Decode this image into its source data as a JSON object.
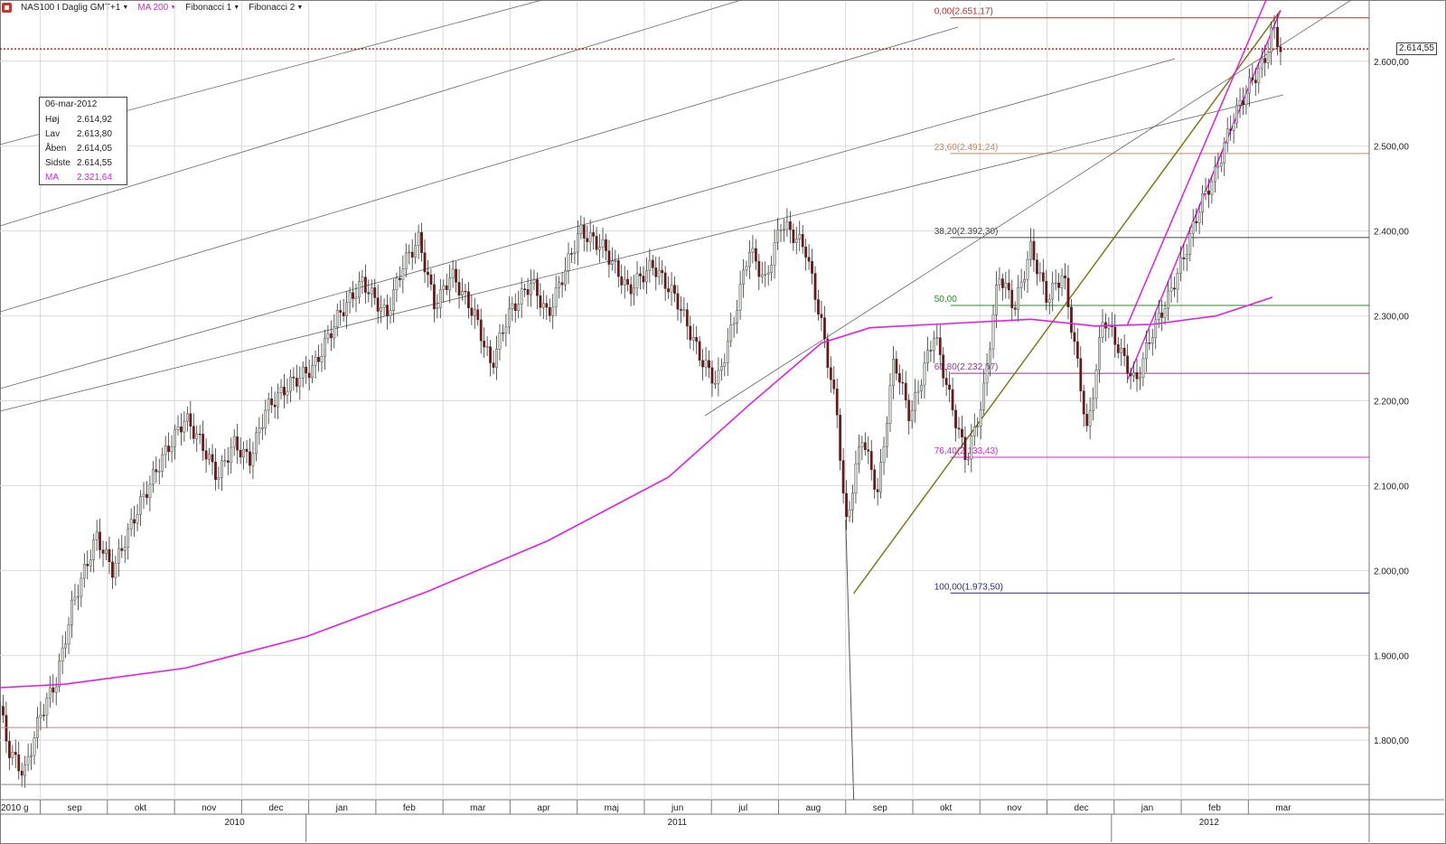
{
  "toolbar": {
    "instrument": "NAS100 I Daglig GMT+1",
    "ma_label": "MA 200",
    "fib1_label": "Fibonacci 1",
    "fib2_label": "Fibonacci 2",
    "ma_color": "#e020e0"
  },
  "info_box": {
    "date": "06-mar-2012",
    "rows": [
      {
        "k": "Høj",
        "v": "2.614,92"
      },
      {
        "k": "Lav",
        "v": "2.613,80"
      },
      {
        "k": "Åben",
        "v": "2.614,05"
      },
      {
        "k": "Sidste",
        "v": "2.614,55"
      },
      {
        "k": "MA",
        "v": "2.321,64"
      }
    ]
  },
  "last_price_label": "2.614,55",
  "chart_data": {
    "type": "candlestick",
    "ylim": [
      1730,
      2670
    ],
    "y_ticks": [
      {
        "v": 1800,
        "label": "1.800,00"
      },
      {
        "v": 1900,
        "label": "1.900,00"
      },
      {
        "v": 2000,
        "label": "2.000,00"
      },
      {
        "v": 2100,
        "label": "2.100,00"
      },
      {
        "v": 2200,
        "label": "2.200,00"
      },
      {
        "v": 2300,
        "label": "2.300,00"
      },
      {
        "v": 2400,
        "label": "2.400,00"
      },
      {
        "v": 2500,
        "label": "2.500,00"
      },
      {
        "v": 2600,
        "label": "2.600,00"
      }
    ],
    "month_ticks": [
      "sep",
      "okt",
      "nov",
      "dec",
      "jan",
      "feb",
      "mar",
      "apr",
      "maj",
      "jun",
      "jul",
      "aug",
      "sep",
      "okt",
      "nov",
      "dec",
      "jan",
      "feb",
      "mar"
    ],
    "first_tick_label": "2010 g",
    "year_labels": [
      "2010",
      "2011",
      "2012"
    ],
    "last_price": 2614.55,
    "ma200": [
      [
        2010.62,
        1862
      ],
      [
        2010.7,
        1866
      ],
      [
        2010.85,
        1885
      ],
      [
        2011.0,
        1922
      ],
      [
        2011.15,
        1975
      ],
      [
        2011.3,
        2035
      ],
      [
        2011.45,
        2110
      ],
      [
        2011.55,
        2195
      ],
      [
        2011.64,
        2268
      ],
      [
        2011.7,
        2286
      ],
      [
        2011.8,
        2291
      ],
      [
        2011.9,
        2296
      ],
      [
        2011.98,
        2288
      ],
      [
        2012.05,
        2290
      ],
      [
        2012.13,
        2300
      ],
      [
        2012.2,
        2322
      ]
    ],
    "close_path": [
      [
        2010.62,
        1840
      ],
      [
        2010.63,
        1790
      ],
      [
        2010.65,
        1760
      ],
      [
        2010.67,
        1830
      ],
      [
        2010.69,
        1870
      ],
      [
        2010.71,
        1960
      ],
      [
        2010.74,
        2040
      ],
      [
        2010.76,
        2000
      ],
      [
        2010.79,
        2070
      ],
      [
        2010.82,
        2130
      ],
      [
        2010.85,
        2180
      ],
      [
        2010.87,
        2150
      ],
      [
        2010.89,
        2110
      ],
      [
        2010.91,
        2150
      ],
      [
        2010.93,
        2130
      ],
      [
        2010.95,
        2190
      ],
      [
        2010.98,
        2220
      ],
      [
        2011.01,
        2240
      ],
      [
        2011.04,
        2300
      ],
      [
        2011.07,
        2340
      ],
      [
        2011.1,
        2300
      ],
      [
        2011.12,
        2360
      ],
      [
        2011.14,
        2390
      ],
      [
        2011.16,
        2310
      ],
      [
        2011.18,
        2350
      ],
      [
        2011.21,
        2300
      ],
      [
        2011.23,
        2240
      ],
      [
        2011.25,
        2300
      ],
      [
        2011.28,
        2340
      ],
      [
        2011.3,
        2300
      ],
      [
        2011.32,
        2350
      ],
      [
        2011.34,
        2400
      ],
      [
        2011.37,
        2380
      ],
      [
        2011.4,
        2330
      ],
      [
        2011.43,
        2360
      ],
      [
        2011.46,
        2320
      ],
      [
        2011.49,
        2250
      ],
      [
        2011.51,
        2220
      ],
      [
        2011.53,
        2290
      ],
      [
        2011.55,
        2380
      ],
      [
        2011.57,
        2340
      ],
      [
        2011.59,
        2410
      ],
      [
        2011.62,
        2380
      ],
      [
        2011.64,
        2290
      ],
      [
        2011.66,
        2180
      ],
      [
        2011.67,
        2050
      ],
      [
        2011.69,
        2160
      ],
      [
        2011.71,
        2090
      ],
      [
        2011.73,
        2250
      ],
      [
        2011.75,
        2180
      ],
      [
        2011.78,
        2280
      ],
      [
        2011.8,
        2200
      ],
      [
        2011.82,
        2130
      ],
      [
        2011.84,
        2200
      ],
      [
        2011.86,
        2350
      ],
      [
        2011.88,
        2310
      ],
      [
        2011.9,
        2380
      ],
      [
        2011.92,
        2320
      ],
      [
        2011.94,
        2350
      ],
      [
        2011.96,
        2230
      ],
      [
        2011.97,
        2160
      ],
      [
        2011.99,
        2300
      ],
      [
        2012.01,
        2260
      ],
      [
        2012.03,
        2220
      ],
      [
        2012.05,
        2280
      ],
      [
        2012.07,
        2320
      ],
      [
        2012.09,
        2370
      ],
      [
        2012.11,
        2430
      ],
      [
        2012.13,
        2470
      ],
      [
        2012.15,
        2530
      ],
      [
        2012.17,
        2570
      ],
      [
        2012.19,
        2600
      ],
      [
        2012.2,
        2640
      ],
      [
        2012.21,
        2615
      ]
    ],
    "fib_levels": [
      {
        "label": "0,00(2.651,17)",
        "v": 2651.17,
        "color": "#b03030"
      },
      {
        "label": "23,60(2.491,24)",
        "v": 2491.24,
        "color": "#c08a6a"
      },
      {
        "label": "38,20(2.392,30)",
        "v": 2392.3,
        "color": "#444444"
      },
      {
        "label": "50,00",
        "v": 2312.3,
        "color": "#2a8a2a"
      },
      {
        "label": "61,80(2.232,37)",
        "v": 2232.37,
        "color": "#8a3a8a"
      },
      {
        "label": "76,40(2.133,43)",
        "v": 2133.43,
        "color": "#e020e0"
      },
      {
        "label": "100,00(1.973,50)",
        "v": 1973.5,
        "color": "#2a2a8a"
      }
    ]
  }
}
